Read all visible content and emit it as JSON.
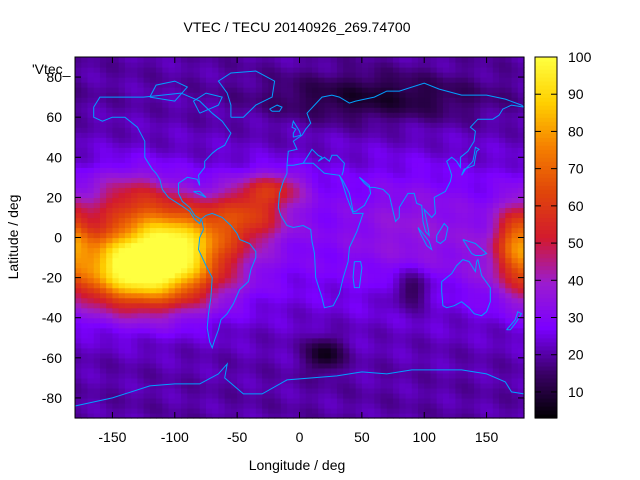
{
  "chart_data": {
    "type": "heatmap",
    "title": "VTEC / TECU 20140926_269.74700",
    "xlabel": "Longitude / deg",
    "ylabel": "Latitude / deg",
    "legend_label": "'Vtec_",
    "xlim": [
      -180,
      180
    ],
    "ylim": [
      -90,
      90
    ],
    "x_ticks": [
      -150,
      -100,
      -50,
      0,
      50,
      100,
      150
    ],
    "y_ticks": [
      -80,
      -60,
      -40,
      -20,
      0,
      20,
      40,
      60,
      80
    ],
    "colorbar": {
      "range": [
        3,
        100
      ],
      "ticks": [
        10,
        20,
        30,
        40,
        50,
        60,
        70,
        80,
        90,
        100
      ],
      "colormap": [
        "#000000",
        "#3a0066",
        "#7b00ff",
        "#9b1ccf",
        "#d21a2e",
        "#e0450a",
        "#f57f00",
        "#ffd000",
        "#ffff40"
      ]
    },
    "grid_resolution": {
      "dlon": 5,
      "dlat": 2.5
    },
    "features": [
      {
        "lon": -125,
        "lat": -15,
        "amp": 82,
        "slon": 40,
        "slat": 14
      },
      {
        "lon": -95,
        "lat": 2,
        "amp": 35,
        "slon": 30,
        "slat": 12
      },
      {
        "lon": -135,
        "lat": 20,
        "amp": 22,
        "slon": 25,
        "slat": 10
      },
      {
        "lon": -40,
        "lat": 12,
        "amp": 28,
        "slon": 22,
        "slat": 10
      },
      {
        "lon": -20,
        "lat": 25,
        "amp": 22,
        "slon": 18,
        "slat": 6
      },
      {
        "lon": 175,
        "lat": 0,
        "amp": 32,
        "slon": 12,
        "slat": 12
      },
      {
        "lon": 90,
        "lat": 5,
        "amp": 8,
        "slon": 40,
        "slat": 20
      },
      {
        "lon": 20,
        "lat": -58,
        "amp": -16,
        "slon": 10,
        "slat": 6
      },
      {
        "lon": 90,
        "lat": -25,
        "amp": -14,
        "slon": 12,
        "slat": 7
      },
      {
        "lon": 60,
        "lat": 70,
        "amp": -12,
        "slon": 60,
        "slat": 8
      }
    ],
    "coastline_color": "#00a0ff"
  }
}
